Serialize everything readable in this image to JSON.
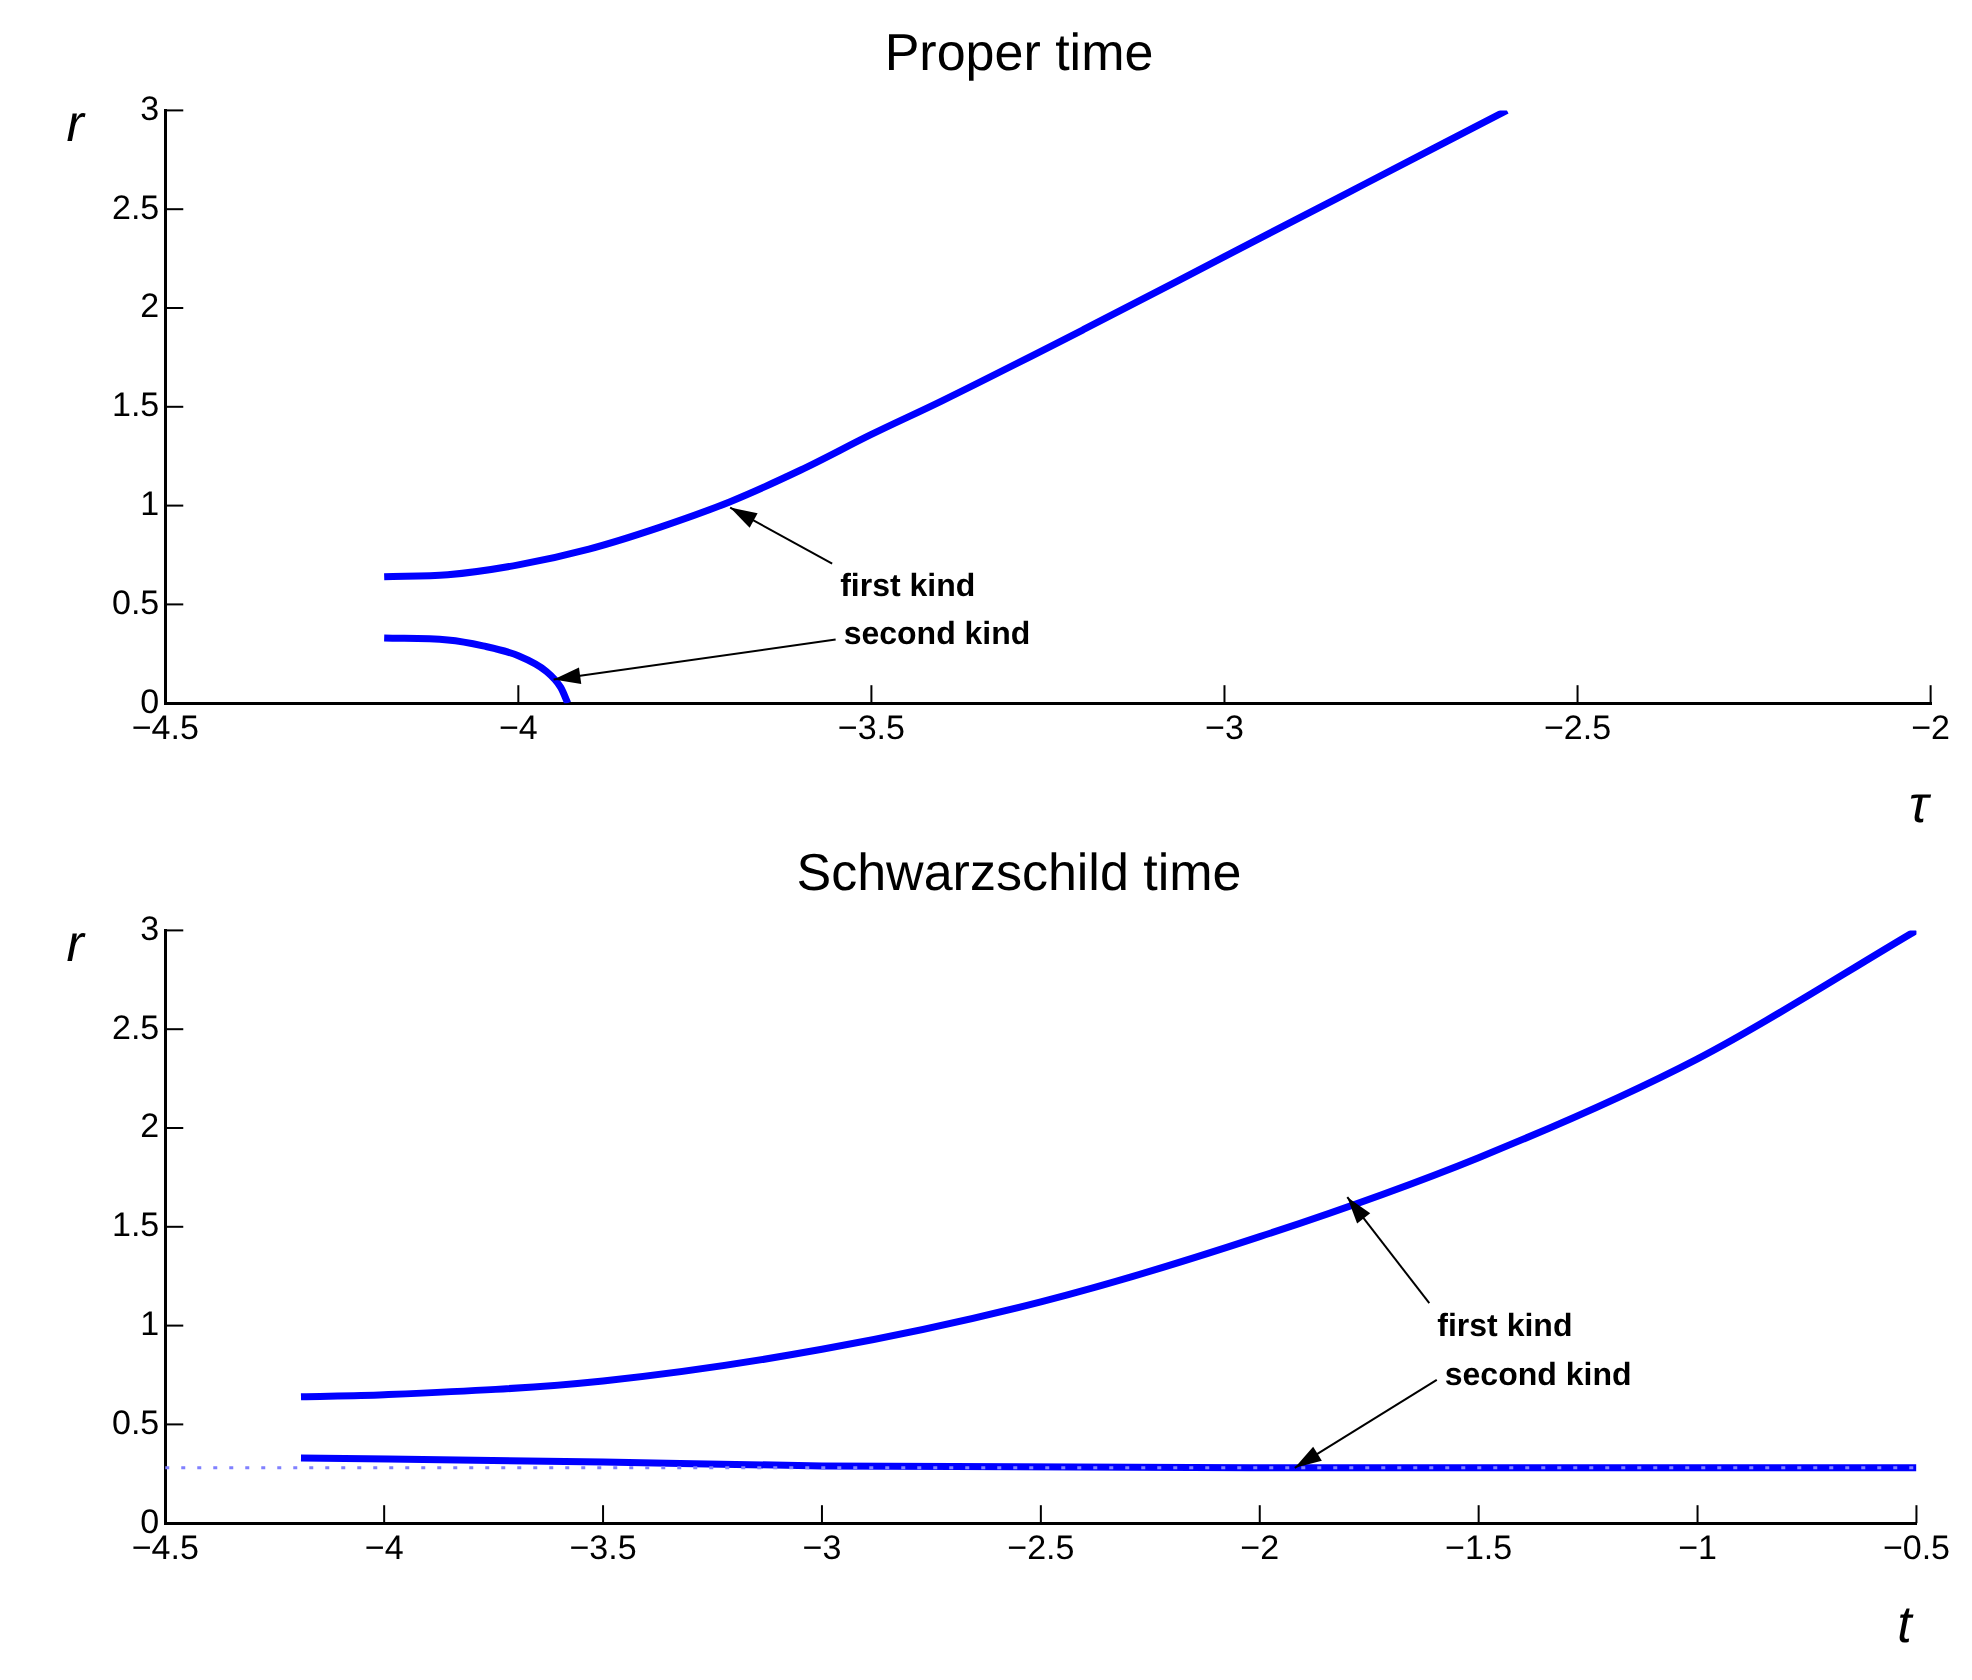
{
  "chart_data": [
    {
      "type": "line",
      "title": "Proper time",
      "xlabel": "τ",
      "ylabel": "r",
      "xlim": [
        -4.5,
        -2
      ],
      "xticks": [
        -4.5,
        -4,
        -3.5,
        -3,
        -2.5,
        -2
      ],
      "ylim": [
        0,
        3
      ],
      "yticks": [
        0,
        0.5,
        1,
        1.5,
        2,
        2.5,
        3
      ],
      "grid": false,
      "legend": false,
      "marker": "none",
      "line_style": "solid",
      "series": [
        {
          "color": "#0000ff",
          "x": [
            -4.19,
            -4.1,
            -4.0,
            -3.9,
            -3.8,
            -3.7,
            -3.6,
            -3.5,
            -3.4,
            -3.2,
            -3.0,
            -2.8,
            -2.6
          ],
          "values": [
            0.64,
            0.65,
            0.7,
            0.78,
            0.89,
            1.02,
            1.18,
            1.36,
            1.53,
            1.89,
            2.26,
            2.63,
            3.0
          ]
        },
        {
          "color": "#0000ff",
          "x": [
            -4.19,
            -4.1,
            -4.05,
            -4.0,
            -3.96,
            -3.94,
            -3.93
          ],
          "values": [
            0.33,
            0.32,
            0.29,
            0.24,
            0.16,
            0.08,
            0
          ]
        }
      ],
      "annotations": [
        {
          "text": "first kind",
          "x": -3.7,
          "y": 0.99
        },
        {
          "text": "second kind",
          "x": -3.95,
          "y": 0.12
        }
      ]
    },
    {
      "type": "line",
      "title": "Schwarzschild time",
      "xlabel": "t",
      "ylabel": "r",
      "xlim": [
        -4.5,
        -0.5
      ],
      "xticks": [
        -4.5,
        -4,
        -3.5,
        -3,
        -2.5,
        -2,
        -1.5,
        -1,
        -0.5
      ],
      "ylim": [
        0,
        3
      ],
      "yticks": [
        0,
        0.5,
        1,
        1.5,
        2,
        2.5,
        3
      ],
      "grid": false,
      "legend": false,
      "marker": "none",
      "line_style": "solid",
      "series": [
        {
          "color": "#0000ff",
          "x": [
            -4.19,
            -4,
            -3.5,
            -3,
            -2.5,
            -2,
            -1.5,
            -1,
            -0.5
          ],
          "values": [
            0.64,
            0.65,
            0.72,
            0.88,
            1.12,
            1.45,
            1.85,
            2.35,
            3.0
          ]
        },
        {
          "color": "#0000ff",
          "x": [
            -4.19,
            -3.5,
            -3,
            -2,
            -0.5
          ],
          "values": [
            0.33,
            0.31,
            0.29,
            0.28,
            0.28
          ]
        }
      ],
      "ref_lines": [
        {
          "axis": "y",
          "value": 0.28,
          "color": "#8080ff",
          "line_style": "dotted"
        }
      ],
      "annotations": [
        {
          "text": "first kind",
          "x": -1.8,
          "y": 1.65
        },
        {
          "text": "second kind",
          "x": -1.92,
          "y": 0.28
        }
      ]
    }
  ]
}
